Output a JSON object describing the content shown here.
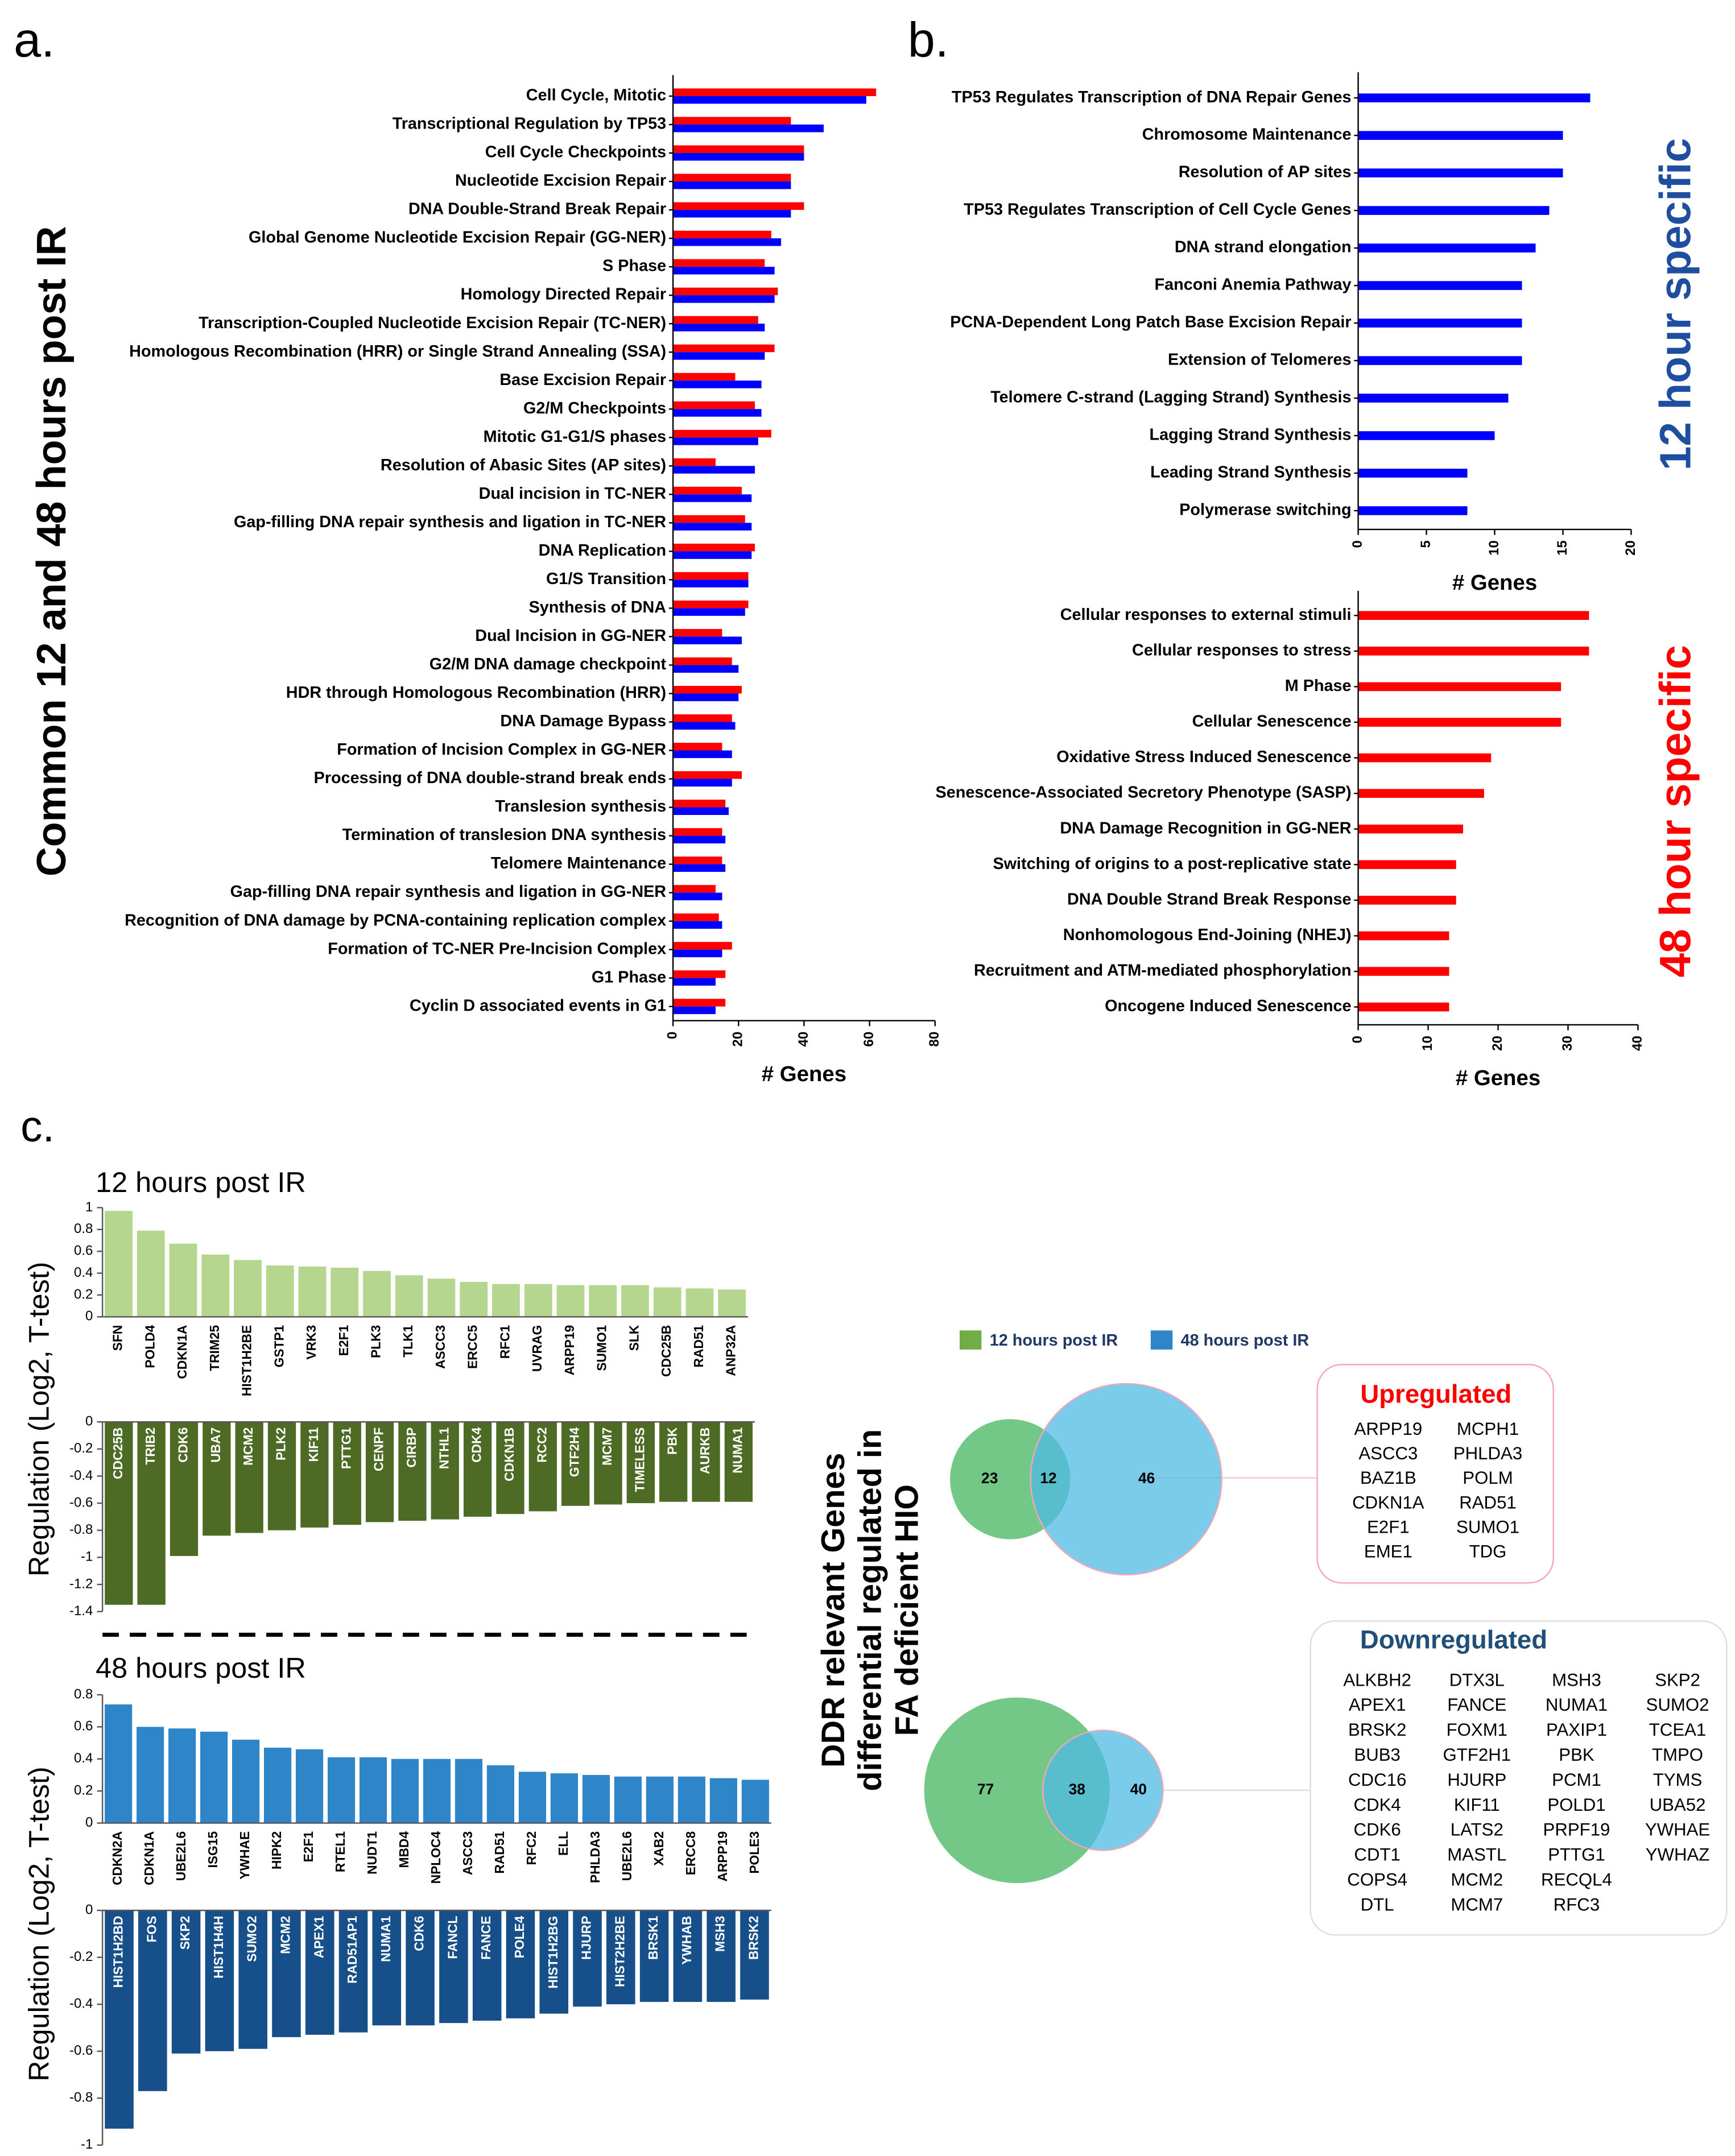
{
  "panel_labels": [
    "a.",
    "b.",
    "c."
  ],
  "chart_data": [
    {
      "type": "hbar",
      "y_label": "Common 12 and 48 hours post IR",
      "x_label": "# Genes",
      "categories": [
        "Cell Cycle, Mitotic",
        "Transcriptional Regulation by TP53",
        "Cell Cycle Checkpoints",
        "Nucleotide Excision Repair",
        "DNA Double-Strand Break Repair",
        "Global Genome Nucleotide Excision Repair (GG-NER)",
        "S Phase",
        "Homology Directed Repair",
        "Transcription-Coupled Nucleotide Excision Repair (TC-NER)",
        "Homologous Recombination (HRR) or Single Strand Annealing (SSA)",
        "Base Excision Repair",
        "G2/M Checkpoints",
        "Mitotic G1-G1/S phases",
        "Resolution of Abasic Sites (AP sites)",
        "Dual incision in TC-NER",
        "Gap-filling DNA repair synthesis and ligation in TC-NER",
        "DNA Replication",
        "G1/S Transition",
        "Synthesis of DNA",
        "Dual Incision in GG-NER",
        "G2/M DNA damage checkpoint",
        "HDR through Homologous Recombination (HRR)",
        "DNA Damage Bypass",
        "Formation of Incision Complex in GG-NER",
        "Processing of DNA double-strand break ends",
        "Translesion synthesis",
        "Termination of translesion DNA synthesis",
        "Telomere Maintenance",
        "Gap-filling DNA repair synthesis and ligation in GG-NER",
        "Recognition of DNA damage by PCNA-containing replication complex",
        "Formation of TC-NER Pre-Incision Complex",
        "G1 Phase",
        "Cyclin D associated events in G1"
      ],
      "series": [
        {
          "color": "#ff0000",
          "values": [
            62,
            36,
            40,
            36,
            40,
            30,
            28,
            32,
            26,
            31,
            19,
            25,
            30,
            13,
            21,
            22,
            25,
            23,
            23,
            15,
            18,
            21,
            18,
            15,
            21,
            16,
            15,
            15,
            13,
            14,
            18,
            16,
            16
          ]
        },
        {
          "color": "#0000ff",
          "values": [
            59,
            46,
            40,
            36,
            36,
            33,
            31,
            31,
            28,
            28,
            27,
            27,
            26,
            25,
            24,
            24,
            24,
            23,
            22,
            21,
            20,
            20,
            19,
            18,
            18,
            17,
            16,
            16,
            15,
            15,
            15,
            13,
            13
          ]
        }
      ],
      "xlim": [
        0,
        80
      ],
      "xticks": [
        0,
        20,
        40,
        60,
        80
      ]
    },
    {
      "type": "hbar",
      "title": "12 hour specific",
      "title_color": "#1f4ea0",
      "x_label": "# Genes",
      "categories": [
        "TP53 Regulates Transcription of DNA Repair Genes",
        "Chromosome Maintenance",
        "Resolution of AP sites",
        "TP53 Regulates Transcription of Cell Cycle Genes",
        "DNA strand elongation",
        "Fanconi Anemia Pathway",
        "PCNA-Dependent Long Patch Base Excision Repair",
        "Extension of Telomeres",
        "Telomere C-strand (Lagging Strand) Synthesis",
        "Lagging Strand Synthesis",
        "Leading Strand Synthesis",
        "Polymerase switching"
      ],
      "values": [
        17,
        15,
        15,
        14,
        13,
        12,
        12,
        12,
        11,
        10,
        8,
        8
      ],
      "color": "#0000ff",
      "xlim": [
        0,
        20
      ],
      "xticks": [
        0,
        5,
        10,
        15,
        20
      ]
    },
    {
      "type": "hbar",
      "title": "48 hour specific",
      "title_color": "#ff0000",
      "x_label": "# Genes",
      "categories": [
        "Cellular responses to external stimuli",
        "Cellular responses to stress",
        "M Phase",
        "Cellular Senescence",
        "Oxidative Stress Induced Senescence",
        "Senescence-Associated Secretory Phenotype (SASP)",
        "DNA Damage Recognition in GG-NER",
        "Switching of origins to a post-replicative state",
        "DNA Double Strand Break Response",
        "Nonhomologous End-Joining (NHEJ)",
        "Recruitment and ATM-mediated phosphorylation",
        "Oncogene Induced Senescence"
      ],
      "values": [
        33,
        33,
        29,
        29,
        19,
        18,
        15,
        14,
        14,
        13,
        13,
        13
      ],
      "color": "#ff0000",
      "xlim": [
        0,
        40
      ],
      "xticks": [
        0,
        10,
        20,
        30,
        40
      ]
    },
    {
      "type": "bar",
      "title": "12 hours post IR",
      "y_label": "Regulation (Log2, T-test)",
      "color": "#b5d68f",
      "categories": [
        "SFN",
        "POLD4",
        "CDKN1A",
        "TRIM25",
        "HIST1H2BE",
        "GSTP1",
        "VRK3",
        "E2F1",
        "PLK3",
        "TLK1",
        "ASCC3",
        "ERCC5",
        "RFC1",
        "UVRAG",
        "ARPP19",
        "SUMO1",
        "SLK",
        "CDC25B",
        "RAD51",
        "ANP32A"
      ],
      "values": [
        0.97,
        0.79,
        0.67,
        0.57,
        0.52,
        0.47,
        0.46,
        0.45,
        0.42,
        0.38,
        0.35,
        0.32,
        0.3,
        0.3,
        0.29,
        0.29,
        0.29,
        0.27,
        0.26,
        0.25
      ],
      "ylim": [
        0,
        1
      ],
      "yticks": [
        0,
        0.2,
        0.4,
        0.6,
        0.8,
        1
      ]
    },
    {
      "type": "bar",
      "color": "#4e6b25",
      "categories": [
        "CDC25B",
        "TRIB2",
        "CDK6",
        "UBA7",
        "MCM2",
        "PLK2",
        "KIF11",
        "PTTG1",
        "CENPF",
        "CIRBP",
        "NTHL1",
        "CDK4",
        "CDKN1B",
        "RCC2",
        "GTF2H4",
        "MCM7",
        "TIMELESS",
        "PBK",
        "AURKB",
        "NUMA1"
      ],
      "values": [
        -1.35,
        -1.35,
        -0.99,
        -0.84,
        -0.82,
        -0.8,
        -0.78,
        -0.76,
        -0.74,
        -0.73,
        -0.72,
        -0.7,
        -0.68,
        -0.66,
        -0.62,
        -0.61,
        -0.6,
        -0.59,
        -0.59,
        -0.59
      ],
      "ylim": [
        -1.4,
        0
      ],
      "yticks": [
        0,
        -0.2,
        -0.4,
        -0.6,
        -0.8,
        -1,
        -1.2,
        -1.4
      ]
    },
    {
      "type": "bar",
      "title": "48 hours post IR",
      "y_label": "Regulation (Log2, T-test)",
      "color": "#2e86c8",
      "categories": [
        "CDKN2A",
        "CDKN1A",
        "UBE2L6",
        "ISG15",
        "YWHAE",
        "HIPK2",
        "E2F1",
        "RTEL1",
        "NUDT1",
        "MBD4",
        "NPLOC4",
        "ASCC3",
        "RAD51",
        "RFC2",
        "ELL",
        "PHLDA3",
        "UBE2L6",
        "XAB2",
        "ERCC8",
        "ARPP19",
        "POLE3"
      ],
      "values": [
        0.74,
        0.6,
        0.59,
        0.57,
        0.52,
        0.47,
        0.46,
        0.41,
        0.41,
        0.4,
        0.4,
        0.4,
        0.36,
        0.32,
        0.31,
        0.3,
        0.29,
        0.29,
        0.29,
        0.28,
        0.27
      ],
      "ylim": [
        0,
        0.8
      ],
      "yticks": [
        0,
        0.2,
        0.4,
        0.6,
        0.8
      ]
    },
    {
      "type": "bar",
      "color": "#164f8a",
      "categories": [
        "HIST1H2BD",
        "FOS",
        "SKP2",
        "HIST1H4H",
        "SUMO2",
        "MCM2",
        "APEX1",
        "RAD51AP1",
        "NUMA1",
        "CDK6",
        "FANCL",
        "FANCE",
        "POLE4",
        "HIST1H2BG",
        "HJURP",
        "HIST2H2BE",
        "BRSK1",
        "YWHAB",
        "MSH3",
        "BRSK2"
      ],
      "values": [
        -0.93,
        -0.77,
        -0.61,
        -0.6,
        -0.59,
        -0.54,
        -0.53,
        -0.52,
        -0.49,
        -0.49,
        -0.48,
        -0.47,
        -0.46,
        -0.44,
        -0.41,
        -0.4,
        -0.39,
        -0.39,
        -0.39,
        -0.38
      ],
      "ylim": [
        -1,
        0
      ],
      "yticks": [
        0,
        -0.2,
        -0.4,
        -0.6,
        -0.8,
        -1
      ]
    }
  ],
  "venn": {
    "title_lines": [
      "DDR relevant Genes",
      "differential regulated in",
      "FA deficient HIO"
    ],
    "legend": [
      {
        "name": "12 hours post IR",
        "color": "#70ad47"
      },
      {
        "name": "48 hours post IR",
        "color": "#2e86c8"
      }
    ],
    "diagrams": [
      {
        "counts": [
          23,
          12,
          46
        ]
      },
      {
        "counts": [
          77,
          38,
          40
        ]
      }
    ],
    "upregulated": {
      "title": "Upregulated",
      "columns": [
        [
          "ARPP19",
          "ASCC3",
          "BAZ1B",
          "CDKN1A",
          "E2F1",
          "EME1"
        ],
        [
          "MCPH1",
          "PHLDA3",
          "POLM",
          "RAD51",
          "SUMO1",
          "TDG"
        ]
      ]
    },
    "downregulated": {
      "title": "Downregulated",
      "columns": [
        [
          "ALKBH2",
          "APEX1",
          "BRSK2",
          "BUB3",
          "CDC16",
          "CDK4",
          "CDK6",
          "CDT1",
          "COPS4",
          "DTL"
        ],
        [
          "DTX3L",
          "FANCE",
          "FOXM1",
          "GTF2H1",
          "HJURP",
          "KIF11",
          "LATS2",
          "MASTL",
          "MCM2",
          "MCM7"
        ],
        [
          "MSH3",
          "NUMA1",
          "PAXIP1",
          "PBK",
          "PCM1",
          "POLD1",
          "PRPF19",
          "PTTG1",
          "RECQL4",
          "RFC3"
        ],
        [
          "SKP2",
          "SUMO2",
          "TCEA1",
          "TMPO",
          "TYMS",
          "UBA52",
          "YWHAE",
          "YWHAZ"
        ]
      ]
    }
  }
}
